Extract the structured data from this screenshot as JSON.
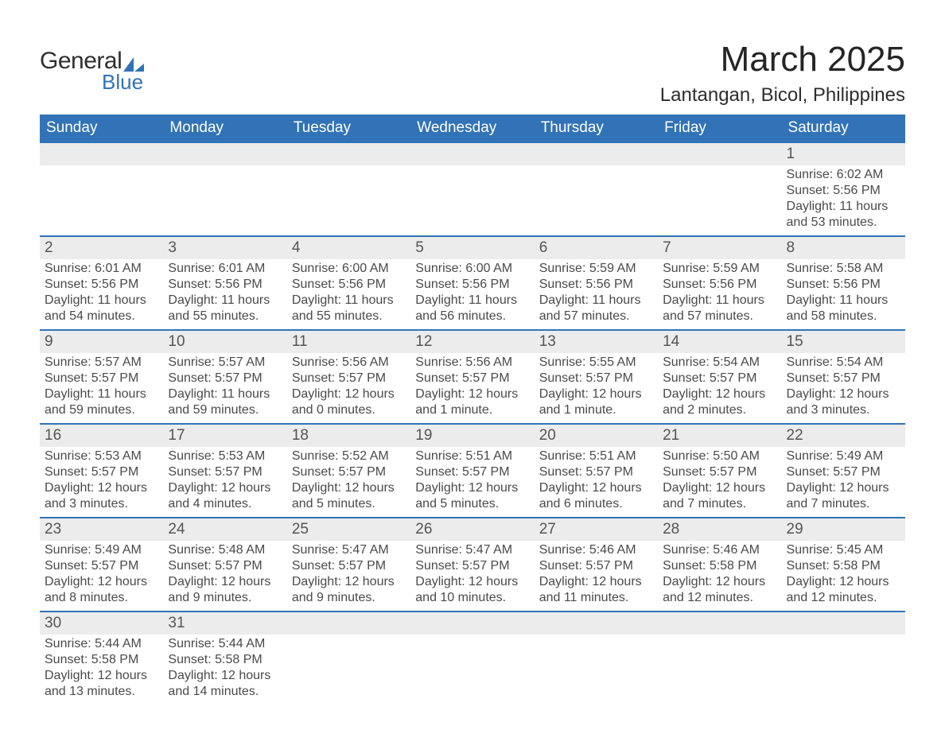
{
  "logo": {
    "general": "General",
    "blue": "Blue",
    "shape_color": "#3173b6"
  },
  "title": {
    "month": "March 2025",
    "location": "Lantangan, Bicol, Philippines"
  },
  "colors": {
    "header_bg": "#3173b6",
    "header_text": "#ffffff",
    "daynum_bg": "#ececec",
    "row_border": "#3173b6",
    "body_text": "#4a4a4a",
    "title_text": "#252525"
  },
  "weekdays": [
    "Sunday",
    "Monday",
    "Tuesday",
    "Wednesday",
    "Thursday",
    "Friday",
    "Saturday"
  ],
  "weeks": [
    [
      null,
      null,
      null,
      null,
      null,
      null,
      {
        "n": "1",
        "l1": "Sunrise: 6:02 AM",
        "l2": "Sunset: 5:56 PM",
        "l3": "Daylight: 11 hours",
        "l4": "and 53 minutes."
      }
    ],
    [
      {
        "n": "2",
        "l1": "Sunrise: 6:01 AM",
        "l2": "Sunset: 5:56 PM",
        "l3": "Daylight: 11 hours",
        "l4": "and 54 minutes."
      },
      {
        "n": "3",
        "l1": "Sunrise: 6:01 AM",
        "l2": "Sunset: 5:56 PM",
        "l3": "Daylight: 11 hours",
        "l4": "and 55 minutes."
      },
      {
        "n": "4",
        "l1": "Sunrise: 6:00 AM",
        "l2": "Sunset: 5:56 PM",
        "l3": "Daylight: 11 hours",
        "l4": "and 55 minutes."
      },
      {
        "n": "5",
        "l1": "Sunrise: 6:00 AM",
        "l2": "Sunset: 5:56 PM",
        "l3": "Daylight: 11 hours",
        "l4": "and 56 minutes."
      },
      {
        "n": "6",
        "l1": "Sunrise: 5:59 AM",
        "l2": "Sunset: 5:56 PM",
        "l3": "Daylight: 11 hours",
        "l4": "and 57 minutes."
      },
      {
        "n": "7",
        "l1": "Sunrise: 5:59 AM",
        "l2": "Sunset: 5:56 PM",
        "l3": "Daylight: 11 hours",
        "l4": "and 57 minutes."
      },
      {
        "n": "8",
        "l1": "Sunrise: 5:58 AM",
        "l2": "Sunset: 5:56 PM",
        "l3": "Daylight: 11 hours",
        "l4": "and 58 minutes."
      }
    ],
    [
      {
        "n": "9",
        "l1": "Sunrise: 5:57 AM",
        "l2": "Sunset: 5:57 PM",
        "l3": "Daylight: 11 hours",
        "l4": "and 59 minutes."
      },
      {
        "n": "10",
        "l1": "Sunrise: 5:57 AM",
        "l2": "Sunset: 5:57 PM",
        "l3": "Daylight: 11 hours",
        "l4": "and 59 minutes."
      },
      {
        "n": "11",
        "l1": "Sunrise: 5:56 AM",
        "l2": "Sunset: 5:57 PM",
        "l3": "Daylight: 12 hours",
        "l4": "and 0 minutes."
      },
      {
        "n": "12",
        "l1": "Sunrise: 5:56 AM",
        "l2": "Sunset: 5:57 PM",
        "l3": "Daylight: 12 hours",
        "l4": "and 1 minute."
      },
      {
        "n": "13",
        "l1": "Sunrise: 5:55 AM",
        "l2": "Sunset: 5:57 PM",
        "l3": "Daylight: 12 hours",
        "l4": "and 1 minute."
      },
      {
        "n": "14",
        "l1": "Sunrise: 5:54 AM",
        "l2": "Sunset: 5:57 PM",
        "l3": "Daylight: 12 hours",
        "l4": "and 2 minutes."
      },
      {
        "n": "15",
        "l1": "Sunrise: 5:54 AM",
        "l2": "Sunset: 5:57 PM",
        "l3": "Daylight: 12 hours",
        "l4": "and 3 minutes."
      }
    ],
    [
      {
        "n": "16",
        "l1": "Sunrise: 5:53 AM",
        "l2": "Sunset: 5:57 PM",
        "l3": "Daylight: 12 hours",
        "l4": "and 3 minutes."
      },
      {
        "n": "17",
        "l1": "Sunrise: 5:53 AM",
        "l2": "Sunset: 5:57 PM",
        "l3": "Daylight: 12 hours",
        "l4": "and 4 minutes."
      },
      {
        "n": "18",
        "l1": "Sunrise: 5:52 AM",
        "l2": "Sunset: 5:57 PM",
        "l3": "Daylight: 12 hours",
        "l4": "and 5 minutes."
      },
      {
        "n": "19",
        "l1": "Sunrise: 5:51 AM",
        "l2": "Sunset: 5:57 PM",
        "l3": "Daylight: 12 hours",
        "l4": "and 5 minutes."
      },
      {
        "n": "20",
        "l1": "Sunrise: 5:51 AM",
        "l2": "Sunset: 5:57 PM",
        "l3": "Daylight: 12 hours",
        "l4": "and 6 minutes."
      },
      {
        "n": "21",
        "l1": "Sunrise: 5:50 AM",
        "l2": "Sunset: 5:57 PM",
        "l3": "Daylight: 12 hours",
        "l4": "and 7 minutes."
      },
      {
        "n": "22",
        "l1": "Sunrise: 5:49 AM",
        "l2": "Sunset: 5:57 PM",
        "l3": "Daylight: 12 hours",
        "l4": "and 7 minutes."
      }
    ],
    [
      {
        "n": "23",
        "l1": "Sunrise: 5:49 AM",
        "l2": "Sunset: 5:57 PM",
        "l3": "Daylight: 12 hours",
        "l4": "and 8 minutes."
      },
      {
        "n": "24",
        "l1": "Sunrise: 5:48 AM",
        "l2": "Sunset: 5:57 PM",
        "l3": "Daylight: 12 hours",
        "l4": "and 9 minutes."
      },
      {
        "n": "25",
        "l1": "Sunrise: 5:47 AM",
        "l2": "Sunset: 5:57 PM",
        "l3": "Daylight: 12 hours",
        "l4": "and 9 minutes."
      },
      {
        "n": "26",
        "l1": "Sunrise: 5:47 AM",
        "l2": "Sunset: 5:57 PM",
        "l3": "Daylight: 12 hours",
        "l4": "and 10 minutes."
      },
      {
        "n": "27",
        "l1": "Sunrise: 5:46 AM",
        "l2": "Sunset: 5:57 PM",
        "l3": "Daylight: 12 hours",
        "l4": "and 11 minutes."
      },
      {
        "n": "28",
        "l1": "Sunrise: 5:46 AM",
        "l2": "Sunset: 5:58 PM",
        "l3": "Daylight: 12 hours",
        "l4": "and 12 minutes."
      },
      {
        "n": "29",
        "l1": "Sunrise: 5:45 AM",
        "l2": "Sunset: 5:58 PM",
        "l3": "Daylight: 12 hours",
        "l4": "and 12 minutes."
      }
    ],
    [
      {
        "n": "30",
        "l1": "Sunrise: 5:44 AM",
        "l2": "Sunset: 5:58 PM",
        "l3": "Daylight: 12 hours",
        "l4": "and 13 minutes."
      },
      {
        "n": "31",
        "l1": "Sunrise: 5:44 AM",
        "l2": "Sunset: 5:58 PM",
        "l3": "Daylight: 12 hours",
        "l4": "and 14 minutes."
      },
      null,
      null,
      null,
      null,
      null
    ]
  ]
}
